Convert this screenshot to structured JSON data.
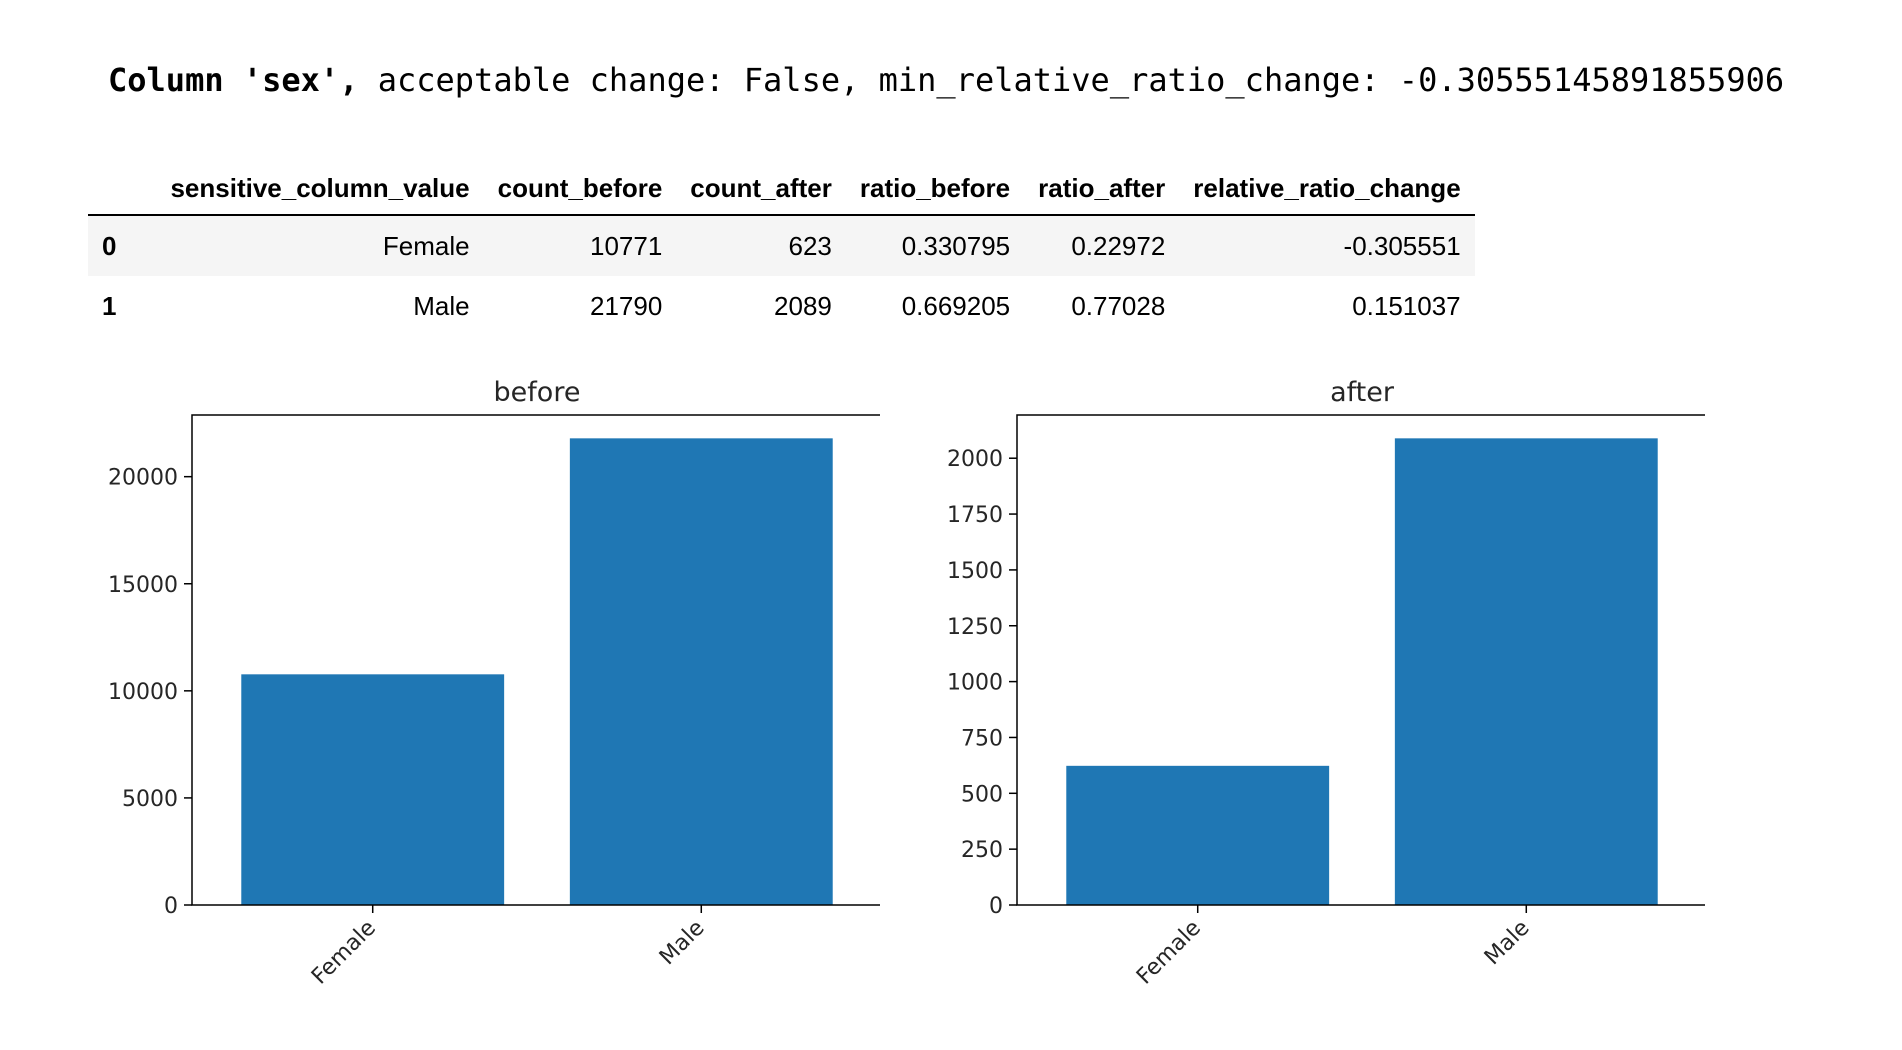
{
  "header": {
    "column_prefix": "Column 'sex',",
    "rest": " acceptable change: False, min_relative_ratio_change: -0.30555145891855906"
  },
  "table": {
    "columns": [
      "",
      "sensitive_column_value",
      "count_before",
      "count_after",
      "ratio_before",
      "ratio_after",
      "relative_ratio_change"
    ],
    "rows": [
      [
        "0",
        "Female",
        "10771",
        "623",
        "0.330795",
        "0.22972",
        "-0.305551"
      ],
      [
        "1",
        "Male",
        "21790",
        "2089",
        "0.669205",
        "0.77028",
        "0.151037"
      ]
    ]
  },
  "colors": {
    "bar": "#1f77b4",
    "table_stripe": "#f5f5f5"
  },
  "chart_data": [
    {
      "type": "bar",
      "title": "before",
      "categories": [
        "Female",
        "Male"
      ],
      "values": [
        10771,
        21790
      ],
      "ylim": [
        0,
        22879.5
      ],
      "yticks": [
        0,
        5000,
        10000,
        15000,
        20000
      ],
      "xlabel": "",
      "ylabel": "",
      "grid": false
    },
    {
      "type": "bar",
      "title": "after",
      "categories": [
        "Female",
        "Male"
      ],
      "values": [
        623,
        2089
      ],
      "ylim": [
        0,
        2193.45
      ],
      "yticks": [
        0,
        250,
        500,
        750,
        1000,
        1250,
        1500,
        1750,
        2000
      ],
      "xlabel": "",
      "ylabel": "",
      "grid": false
    }
  ]
}
